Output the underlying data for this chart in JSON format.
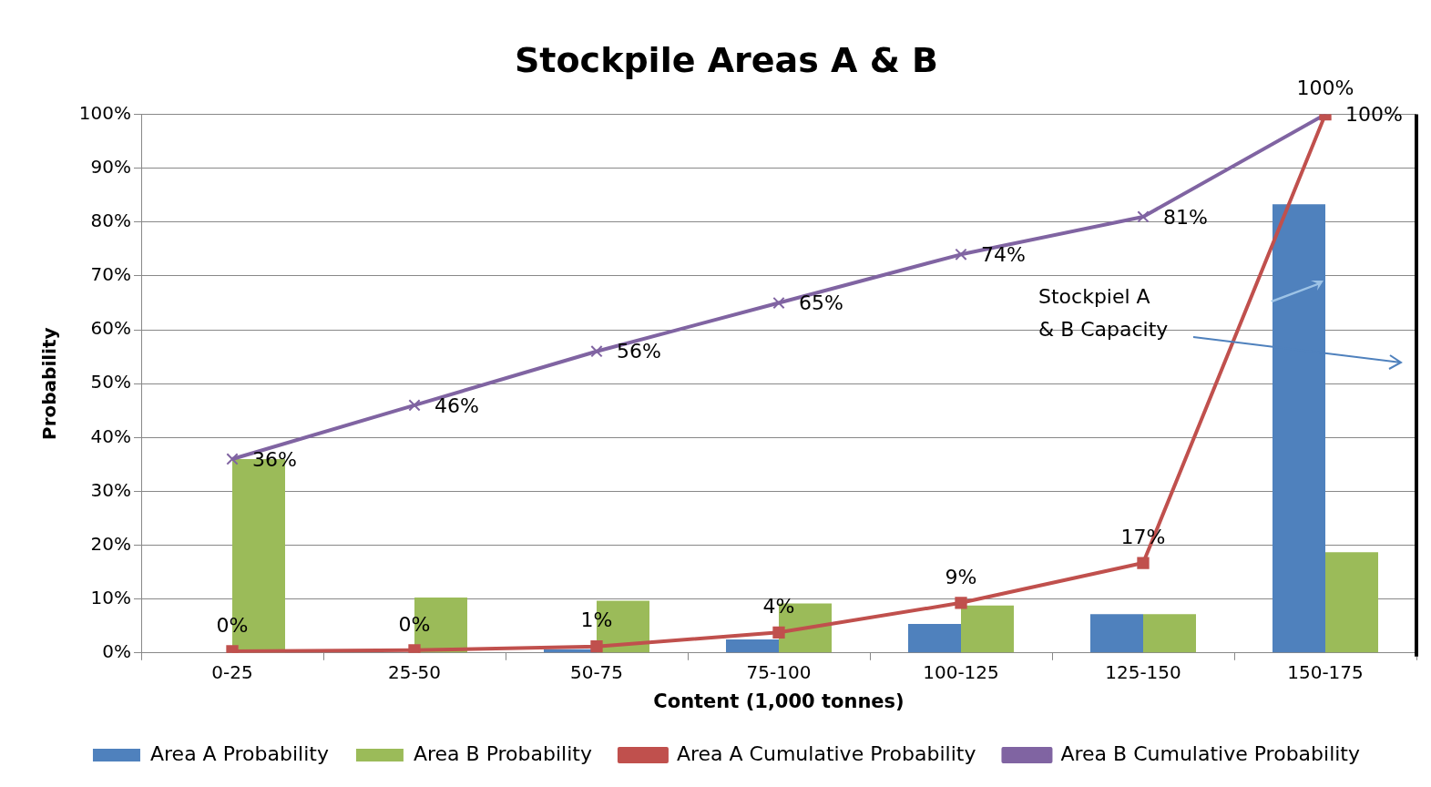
{
  "chart_data": {
    "type": "bar",
    "title": "Stockpile Areas A & B",
    "xlabel": "Content (1,000 tonnes)",
    "ylabel": "Probability",
    "categories": [
      "0-25",
      "25-50",
      "50-75",
      "75-100",
      "100-125",
      "125-150",
      "150-175"
    ],
    "series": [
      {
        "name": "Area A Probability",
        "color": "#4f81bd",
        "values": [
          0,
          0,
          0.7,
          2.5,
          5.4,
          7.2,
          83.3
        ]
      },
      {
        "name": "Area B Probability",
        "color": "#9bbb59",
        "values": [
          36,
          10.3,
          9.7,
          9.2,
          8.8,
          7.2,
          18.7
        ]
      },
      {
        "name": "Area A Cumulative Probability",
        "type": "line",
        "marker": "square",
        "color": "#c0504d",
        "values": [
          0.3,
          0.5,
          1.2,
          3.8,
          9.3,
          16.7,
          100
        ],
        "value_labels": [
          "0%",
          "0%",
          "1%",
          "4%",
          "9%",
          "17%",
          "100%"
        ]
      },
      {
        "name": "Area B Cumulative Probability",
        "type": "line",
        "marker": "cross",
        "color": "#8064a2",
        "values": [
          36,
          46,
          56,
          65,
          74,
          81,
          100
        ],
        "value_labels": [
          "36%",
          "46%",
          "56%",
          "65%",
          "74%",
          "81%",
          "100%"
        ]
      }
    ],
    "ylim": [
      0,
      100
    ],
    "yticks": [
      {
        "value": 0,
        "label": "0%"
      },
      {
        "value": 10,
        "label": "10%"
      },
      {
        "value": 20,
        "label": "20%"
      },
      {
        "value": 30,
        "label": "30%"
      },
      {
        "value": 40,
        "label": "40%"
      },
      {
        "value": 50,
        "label": "50%"
      },
      {
        "value": 60,
        "label": "60%"
      },
      {
        "value": 70,
        "label": "70%"
      },
      {
        "value": 80,
        "label": "80%"
      },
      {
        "value": 90,
        "label": "90%"
      },
      {
        "value": 100,
        "label": "100%"
      }
    ],
    "grid": "y",
    "legend": "bottom",
    "annotations": [
      "Stockpiel A\n& B Capacity"
    ]
  }
}
